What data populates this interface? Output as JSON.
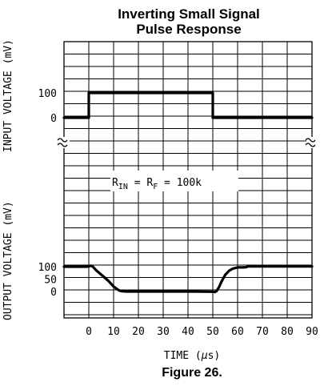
{
  "figure": {
    "title_line1": "Inverting Small Signal",
    "title_line2": "Pulse Response",
    "caption": "Figure 26."
  },
  "chart_data": {
    "type": "line",
    "xlabel": "TIME (µs)",
    "x_unit_prefix": "TIME (",
    "x_unit_mu": "µ",
    "x_unit_suffix": "s)",
    "xlim": [
      -10,
      90
    ],
    "x_ticks": [
      0,
      10,
      20,
      30,
      40,
      50,
      60,
      70,
      80,
      90
    ],
    "annotation": {
      "r_in": "R",
      "r_in_sub": "IN",
      "eq1": " = ",
      "r_f": "R",
      "r_f_sub": "F",
      "eq2": " = 100k"
    },
    "input": {
      "ylabel": "INPUT VOLTAGE (mV)",
      "y_ticks": [
        0,
        100
      ],
      "series": {
        "x": [
          -10,
          0,
          0,
          50,
          50,
          90
        ],
        "y": [
          0,
          0,
          100,
          100,
          0,
          0
        ]
      }
    },
    "output": {
      "ylabel": "OUTPUT VOLTAGE (mV)",
      "y_ticks": [
        0,
        50,
        100
      ],
      "series": {
        "x": [
          -10,
          -1,
          0,
          0.7,
          1.5,
          3,
          5,
          8,
          10,
          11.5,
          12.5,
          13.5,
          15,
          20,
          30,
          40,
          50,
          50.8,
          51.5,
          52.5,
          53.5,
          55,
          56.5,
          58,
          60,
          62,
          63.5,
          64,
          70,
          80,
          90
        ],
        "y": [
          100,
          100,
          101,
          104,
          101,
          85,
          68,
          42,
          20,
          9,
          3,
          1,
          0,
          0,
          0,
          0,
          -1,
          -2,
          1,
          18,
          40,
          67,
          83,
          92,
          97,
          97,
          98,
          101,
          101,
          101,
          101
        ]
      }
    }
  }
}
